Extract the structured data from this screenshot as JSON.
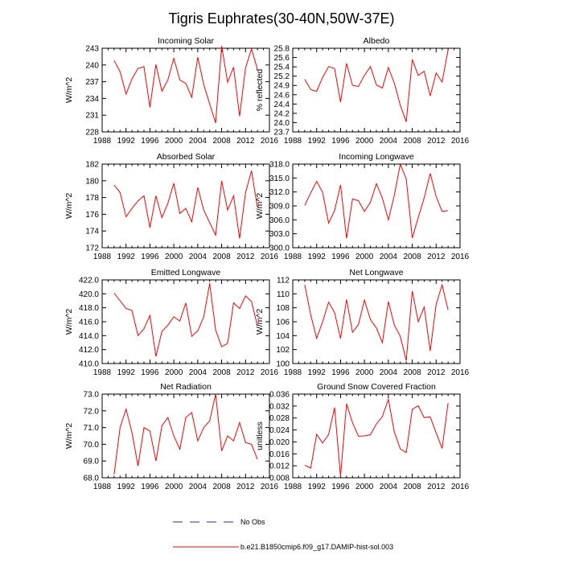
{
  "figure": {
    "title": "Tigris Euphrates(30-40N,50W-37E)",
    "legend": [
      {
        "label": "No Obs",
        "style": "dashed",
        "color": "#2b2b8c"
      },
      {
        "label": "b.e21.B1850cmip6.f09_g17.DAMIP-hist-sol.003",
        "style": "solid",
        "color": "#ff0000"
      }
    ]
  },
  "chart_data": [
    {
      "type": "line",
      "title": "Incoming Solar",
      "ylabel": "W/m^2",
      "xlim": [
        1988,
        2016
      ],
      "xticks": [
        1988,
        1992,
        1996,
        2000,
        2004,
        2008,
        2012,
        2016
      ],
      "ylim": [
        228,
        243
      ],
      "yticks": [
        "228",
        "231",
        "234",
        "237",
        "240",
        "243"
      ],
      "x": [
        1990,
        1991,
        1992,
        1993,
        1994,
        1995,
        1996,
        1997,
        1998,
        1999,
        2000,
        2001,
        2002,
        2003,
        2004,
        2005,
        2006,
        2007,
        2008,
        2009,
        2010,
        2011,
        2012,
        2013,
        2014
      ],
      "series": [
        {
          "color": "#ff0000",
          "values": [
            240.8,
            238.8,
            234.8,
            237.5,
            239.4,
            239.7,
            232.4,
            240.1,
            235.3,
            237.3,
            241.2,
            237.3,
            236.7,
            234.2,
            241.4,
            236.5,
            233.0,
            229.6,
            243.4,
            236.9,
            239.6,
            230.8,
            239.5,
            242.9,
            239.2
          ]
        }
      ]
    },
    {
      "type": "line",
      "title": "Albedo",
      "ylabel": "% reflected",
      "xlim": [
        1988,
        2016
      ],
      "xticks": [
        1988,
        1992,
        1996,
        2000,
        2004,
        2008,
        2012,
        2016
      ],
      "ylim": [
        23.7,
        25.8
      ],
      "yticks": [
        "23.7",
        "24.0",
        "24.2",
        "24.4",
        "24.6",
        "24.9",
        "25.2",
        "25.4",
        "25.6",
        "25.8"
      ],
      "x": [
        1990,
        1991,
        1992,
        1993,
        1994,
        1995,
        1996,
        1997,
        1998,
        1999,
        2000,
        2001,
        2002,
        2003,
        2004,
        2005,
        2006,
        2007,
        2008,
        2009,
        2010,
        2011,
        2012,
        2013,
        2014
      ],
      "series": [
        {
          "color": "#ff0000",
          "values": [
            25.02,
            24.76,
            24.72,
            25.07,
            25.34,
            25.29,
            24.45,
            25.42,
            24.87,
            24.84,
            25.12,
            25.34,
            24.88,
            24.8,
            25.32,
            24.92,
            24.37,
            23.95,
            25.52,
            25.12,
            25.22,
            24.6,
            25.18,
            24.95,
            25.76
          ]
        }
      ]
    },
    {
      "type": "line",
      "title": "Absorbed Solar",
      "ylabel": "W/m^2",
      "xlim": [
        1988,
        2016
      ],
      "xticks": [
        1988,
        1992,
        1996,
        2000,
        2004,
        2008,
        2012,
        2016
      ],
      "ylim": [
        172,
        182
      ],
      "yticks": [
        "172",
        "174",
        "176",
        "178",
        "180",
        "182"
      ],
      "x": [
        1990,
        1991,
        1992,
        1993,
        1994,
        1995,
        1996,
        1997,
        1998,
        1999,
        2000,
        2001,
        2002,
        2003,
        2004,
        2005,
        2006,
        2007,
        2008,
        2009,
        2010,
        2011,
        2012,
        2013,
        2014
      ],
      "series": [
        {
          "color": "#ff0000",
          "values": [
            179.5,
            178.6,
            175.7,
            176.7,
            177.6,
            178.2,
            174.4,
            178.2,
            175.6,
            177.3,
            179.7,
            176.1,
            176.7,
            175.1,
            179.2,
            176.5,
            175.0,
            173.5,
            180.0,
            176.5,
            178.2,
            173.1,
            178.6,
            181.2,
            176.8
          ]
        }
      ]
    },
    {
      "type": "line",
      "title": "Incoming Longwave",
      "ylabel": "W/m^2",
      "xlim": [
        1988,
        2016
      ],
      "xticks": [
        1988,
        1992,
        1996,
        2000,
        2004,
        2008,
        2012,
        2016
      ],
      "ylim": [
        300,
        318
      ],
      "yticks": [
        "300.0",
        "303.0",
        "306.0",
        "309.0",
        "312.0",
        "315.0",
        "318.0"
      ],
      "x": [
        1990,
        1991,
        1992,
        1993,
        1994,
        1995,
        1996,
        1997,
        1998,
        1999,
        2000,
        2001,
        2002,
        2003,
        2004,
        2005,
        2006,
        2007,
        2008,
        2009,
        2010,
        2011,
        2012,
        2013,
        2014
      ],
      "series": [
        {
          "color": "#ff0000",
          "values": [
            309.1,
            311.8,
            314.3,
            311.9,
            305.3,
            308.0,
            313.5,
            302.0,
            310.5,
            310.1,
            307.8,
            309.8,
            313.8,
            310.7,
            306.0,
            311.3,
            318.0,
            314.8,
            302.1,
            306.5,
            310.7,
            316.0,
            311.0,
            307.8,
            308.0
          ]
        }
      ]
    },
    {
      "type": "line",
      "title": "Emitted Longwave",
      "ylabel": "W/m^2",
      "xlim": [
        1988,
        2016
      ],
      "xticks": [
        1988,
        1992,
        1996,
        2000,
        2004,
        2008,
        2012,
        2016
      ],
      "ylim": [
        410,
        422
      ],
      "yticks": [
        "410.0",
        "412.0",
        "414.0",
        "416.0",
        "418.0",
        "420.0",
        "422.0"
      ],
      "x": [
        1990,
        1991,
        1992,
        1993,
        1994,
        1995,
        1996,
        1997,
        1998,
        1999,
        2000,
        2001,
        2002,
        2003,
        2004,
        2005,
        2006,
        2007,
        2008,
        2009,
        2010,
        2011,
        2012,
        2013,
        2014
      ],
      "series": [
        {
          "color": "#ff0000",
          "values": [
            420.1,
            419.0,
            417.9,
            417.6,
            414.0,
            415.0,
            416.9,
            411.0,
            414.6,
            415.5,
            416.7,
            416.1,
            418.7,
            413.9,
            414.7,
            416.7,
            421.5,
            414.8,
            412.4,
            412.9,
            418.7,
            417.9,
            419.7,
            418.9,
            415.4
          ]
        }
      ]
    },
    {
      "type": "line",
      "title": "Net Longwave",
      "ylabel": "W/m^2",
      "xlim": [
        1988,
        2016
      ],
      "xticks": [
        1988,
        1992,
        1996,
        2000,
        2004,
        2008,
        2012,
        2016
      ],
      "ylim": [
        100,
        112
      ],
      "yticks": [
        "100",
        "102",
        "104",
        "106",
        "108",
        "110",
        "112"
      ],
      "x": [
        1990,
        1991,
        1992,
        1993,
        1994,
        1995,
        1996,
        1997,
        1998,
        1999,
        2000,
        2001,
        2002,
        2003,
        2004,
        2005,
        2006,
        2007,
        2008,
        2009,
        2010,
        2011,
        2012,
        2013,
        2014
      ],
      "series": [
        {
          "color": "#ff0000",
          "values": [
            111.3,
            107.0,
            103.6,
            106.0,
            108.8,
            107.3,
            103.6,
            109.2,
            104.5,
            105.6,
            109.1,
            106.3,
            105.1,
            103.0,
            108.9,
            105.5,
            103.9,
            100.4,
            110.4,
            106.0,
            108.1,
            101.8,
            108.5,
            111.3,
            107.7
          ]
        }
      ]
    },
    {
      "type": "line",
      "title": "Net Radiation",
      "ylabel": "W/m^2",
      "xlim": [
        1988,
        2016
      ],
      "xticks": [
        1988,
        1992,
        1996,
        2000,
        2004,
        2008,
        2012,
        2016
      ],
      "ylim": [
        68,
        73
      ],
      "yticks": [
        "68.0",
        "69.0",
        "70.0",
        "71.0",
        "72.0",
        "73.0"
      ],
      "x": [
        1990,
        1991,
        1992,
        1993,
        1994,
        1995,
        1996,
        1997,
        1998,
        1999,
        2000,
        2001,
        2002,
        2003,
        2004,
        2005,
        2006,
        2007,
        2008,
        2009,
        2010,
        2011,
        2012,
        2013,
        2014
      ],
      "series": [
        {
          "color": "#ff0000",
          "values": [
            68.2,
            71.0,
            72.1,
            70.7,
            68.7,
            71.0,
            70.8,
            69.0,
            71.1,
            71.6,
            70.5,
            69.7,
            71.6,
            71.9,
            70.2,
            71.0,
            71.4,
            73.0,
            69.6,
            70.5,
            70.2,
            71.3,
            70.1,
            70.0,
            69.1
          ]
        }
      ]
    },
    {
      "type": "line",
      "title": "Ground Snow Covered Fraction",
      "ylabel": "unitless",
      "xlim": [
        1988,
        2016
      ],
      "xticks": [
        1988,
        1992,
        1996,
        2000,
        2004,
        2008,
        2012,
        2016
      ],
      "ylim": [
        0.008,
        0.036
      ],
      "yticks": [
        "0.008",
        "0.012",
        "0.016",
        "0.020",
        "0.024",
        "0.028",
        "0.032",
        "0.036"
      ],
      "x": [
        1990,
        1991,
        1992,
        1993,
        1994,
        1995,
        1996,
        1997,
        1998,
        1999,
        2000,
        2001,
        2002,
        2003,
        2004,
        2005,
        2006,
        2007,
        2008,
        2009,
        2010,
        2011,
        2012,
        2013,
        2014
      ],
      "series": [
        {
          "color": "#ff0000",
          "values": [
            0.0122,
            0.0112,
            0.0225,
            0.0196,
            0.0225,
            0.0315,
            0.0085,
            0.0328,
            0.0264,
            0.0219,
            0.022,
            0.0224,
            0.026,
            0.0285,
            0.0343,
            0.0233,
            0.0177,
            0.0164,
            0.0309,
            0.0321,
            0.0281,
            0.0284,
            0.023,
            0.0178,
            0.033
          ]
        }
      ]
    }
  ]
}
